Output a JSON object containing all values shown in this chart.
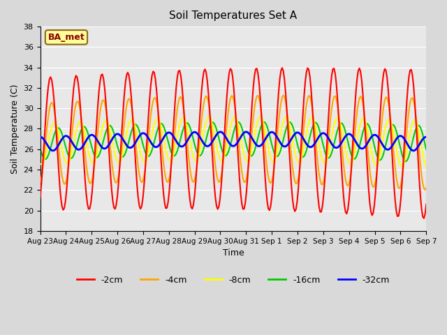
{
  "title": "Soil Temperatures Set A",
  "xlabel": "Time",
  "ylabel": "Soil Temperature (C)",
  "ylim": [
    18,
    38
  ],
  "yticks": [
    18,
    20,
    22,
    24,
    26,
    28,
    30,
    32,
    34,
    36,
    38
  ],
  "colors": {
    "-2cm": "#ff0000",
    "-4cm": "#ffa500",
    "-8cm": "#ffff00",
    "-16cm": "#00cc00",
    "-32cm": "#0000ff"
  },
  "line_widths": {
    "-2cm": 1.5,
    "-4cm": 1.5,
    "-8cm": 1.5,
    "-16cm": 1.5,
    "-32cm": 2.0
  },
  "fig_bg_color": "#d9d9d9",
  "plot_bg_color": "#e8e8e8",
  "annotation_text": "BA_met",
  "annotation_bg": "#ffff99",
  "annotation_border": "#8B6914",
  "annotation_text_color": "#8B0000",
  "n_points": 336,
  "days": [
    "Aug 23",
    "Aug 24",
    "Aug 25",
    "Aug 26",
    "Aug 27",
    "Aug 28",
    "Aug 29",
    "Aug 30",
    "Aug 31",
    "Sep 1",
    "Sep 2",
    "Sep 3",
    "Sep 4",
    "Sep 5",
    "Sep 6",
    "Sep 7"
  ],
  "tick_positions": [
    0,
    1,
    2,
    3,
    4,
    5,
    6,
    7,
    8,
    9,
    10,
    11,
    12,
    13,
    14,
    15
  ]
}
